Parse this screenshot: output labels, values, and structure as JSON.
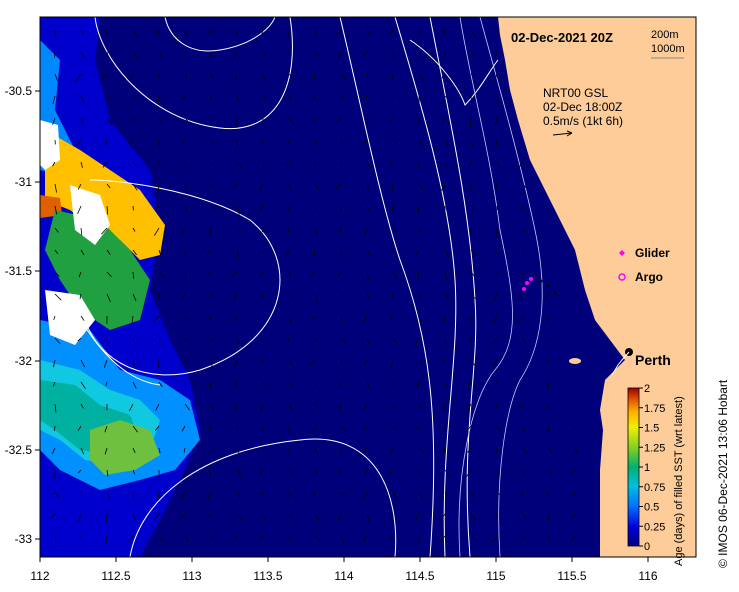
{
  "map": {
    "date_label": "02-Dec-2021 20Z",
    "isobath_labels": [
      "200m",
      "1000m"
    ],
    "current_legend": {
      "line1": "NRT00 GSL",
      "line2": "02-Dec 18:00Z",
      "line3": "0.5m/s (1kt 6h)"
    },
    "markers": {
      "glider_label": "Glider",
      "argo_label": "Argo",
      "city_label": "Perth",
      "glider_color": "#ff00ff",
      "argo_color": "#ff00ff"
    },
    "colorbar": {
      "title": "Age (days) of filled SST (wrt latest)",
      "ticks": [
        "0",
        "0.25",
        "0.5",
        "0.75",
        "1",
        "1.25",
        "1.5",
        "1.75",
        "2"
      ]
    },
    "credit": "© IMOS 06-Dec-2021 13:06 Hobart",
    "x_ticks": [
      "112",
      "112.5",
      "113",
      "113.5",
      "114",
      "114.5",
      "115",
      "115.5",
      "116"
    ],
    "y_ticks": [
      "-30.5",
      "-31",
      "-31.5",
      "-32",
      "-32.5",
      "-33"
    ],
    "colors": {
      "ocean": "#00007a",
      "land": "#fdcc99",
      "contour": "#ffffff"
    }
  }
}
